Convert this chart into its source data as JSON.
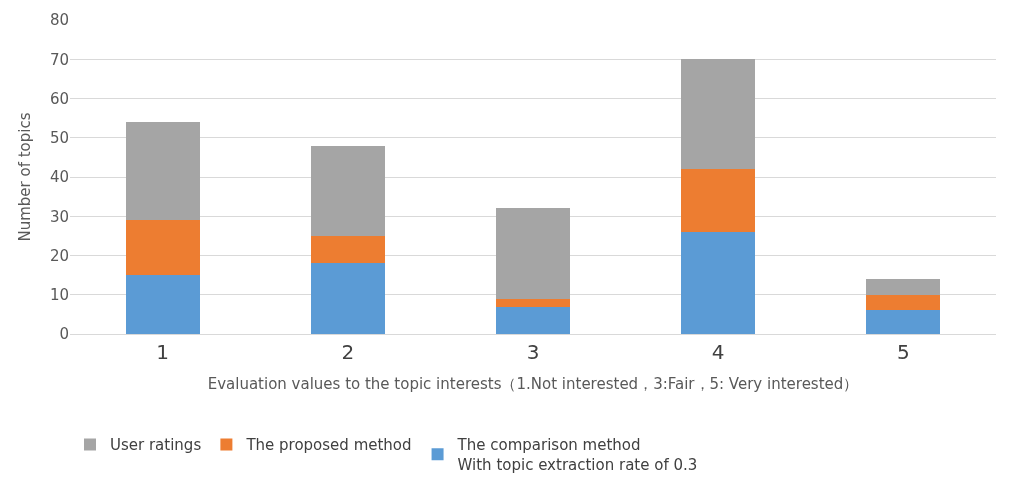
{
  "chart_data": {
    "type": "bar",
    "stacked": true,
    "xlabel": "Evaluation values to the topic interests（1.Not interested，3:Fair，5: Very interested）",
    "ylabel": "Number of topics",
    "categories": [
      "1",
      "2",
      "3",
      "4",
      "5"
    ],
    "series": [
      {
        "name": "The comparison method\nWith topic extraction rate of 0.3",
        "color": "#5b9bd5",
        "values": [
          15,
          18,
          7,
          26,
          6
        ]
      },
      {
        "name": "The proposed method",
        "color": "#ed7d31",
        "values": [
          14,
          7,
          2,
          16,
          4
        ]
      },
      {
        "name": "User ratings",
        "color": "#a5a5a5",
        "values": [
          25,
          23,
          23,
          28,
          4
        ]
      }
    ],
    "ylim": [
      0,
      80
    ],
    "yticks": [
      0,
      10,
      20,
      30,
      40,
      50,
      60,
      70,
      80
    ],
    "grid": "y",
    "legend": "bottom"
  }
}
